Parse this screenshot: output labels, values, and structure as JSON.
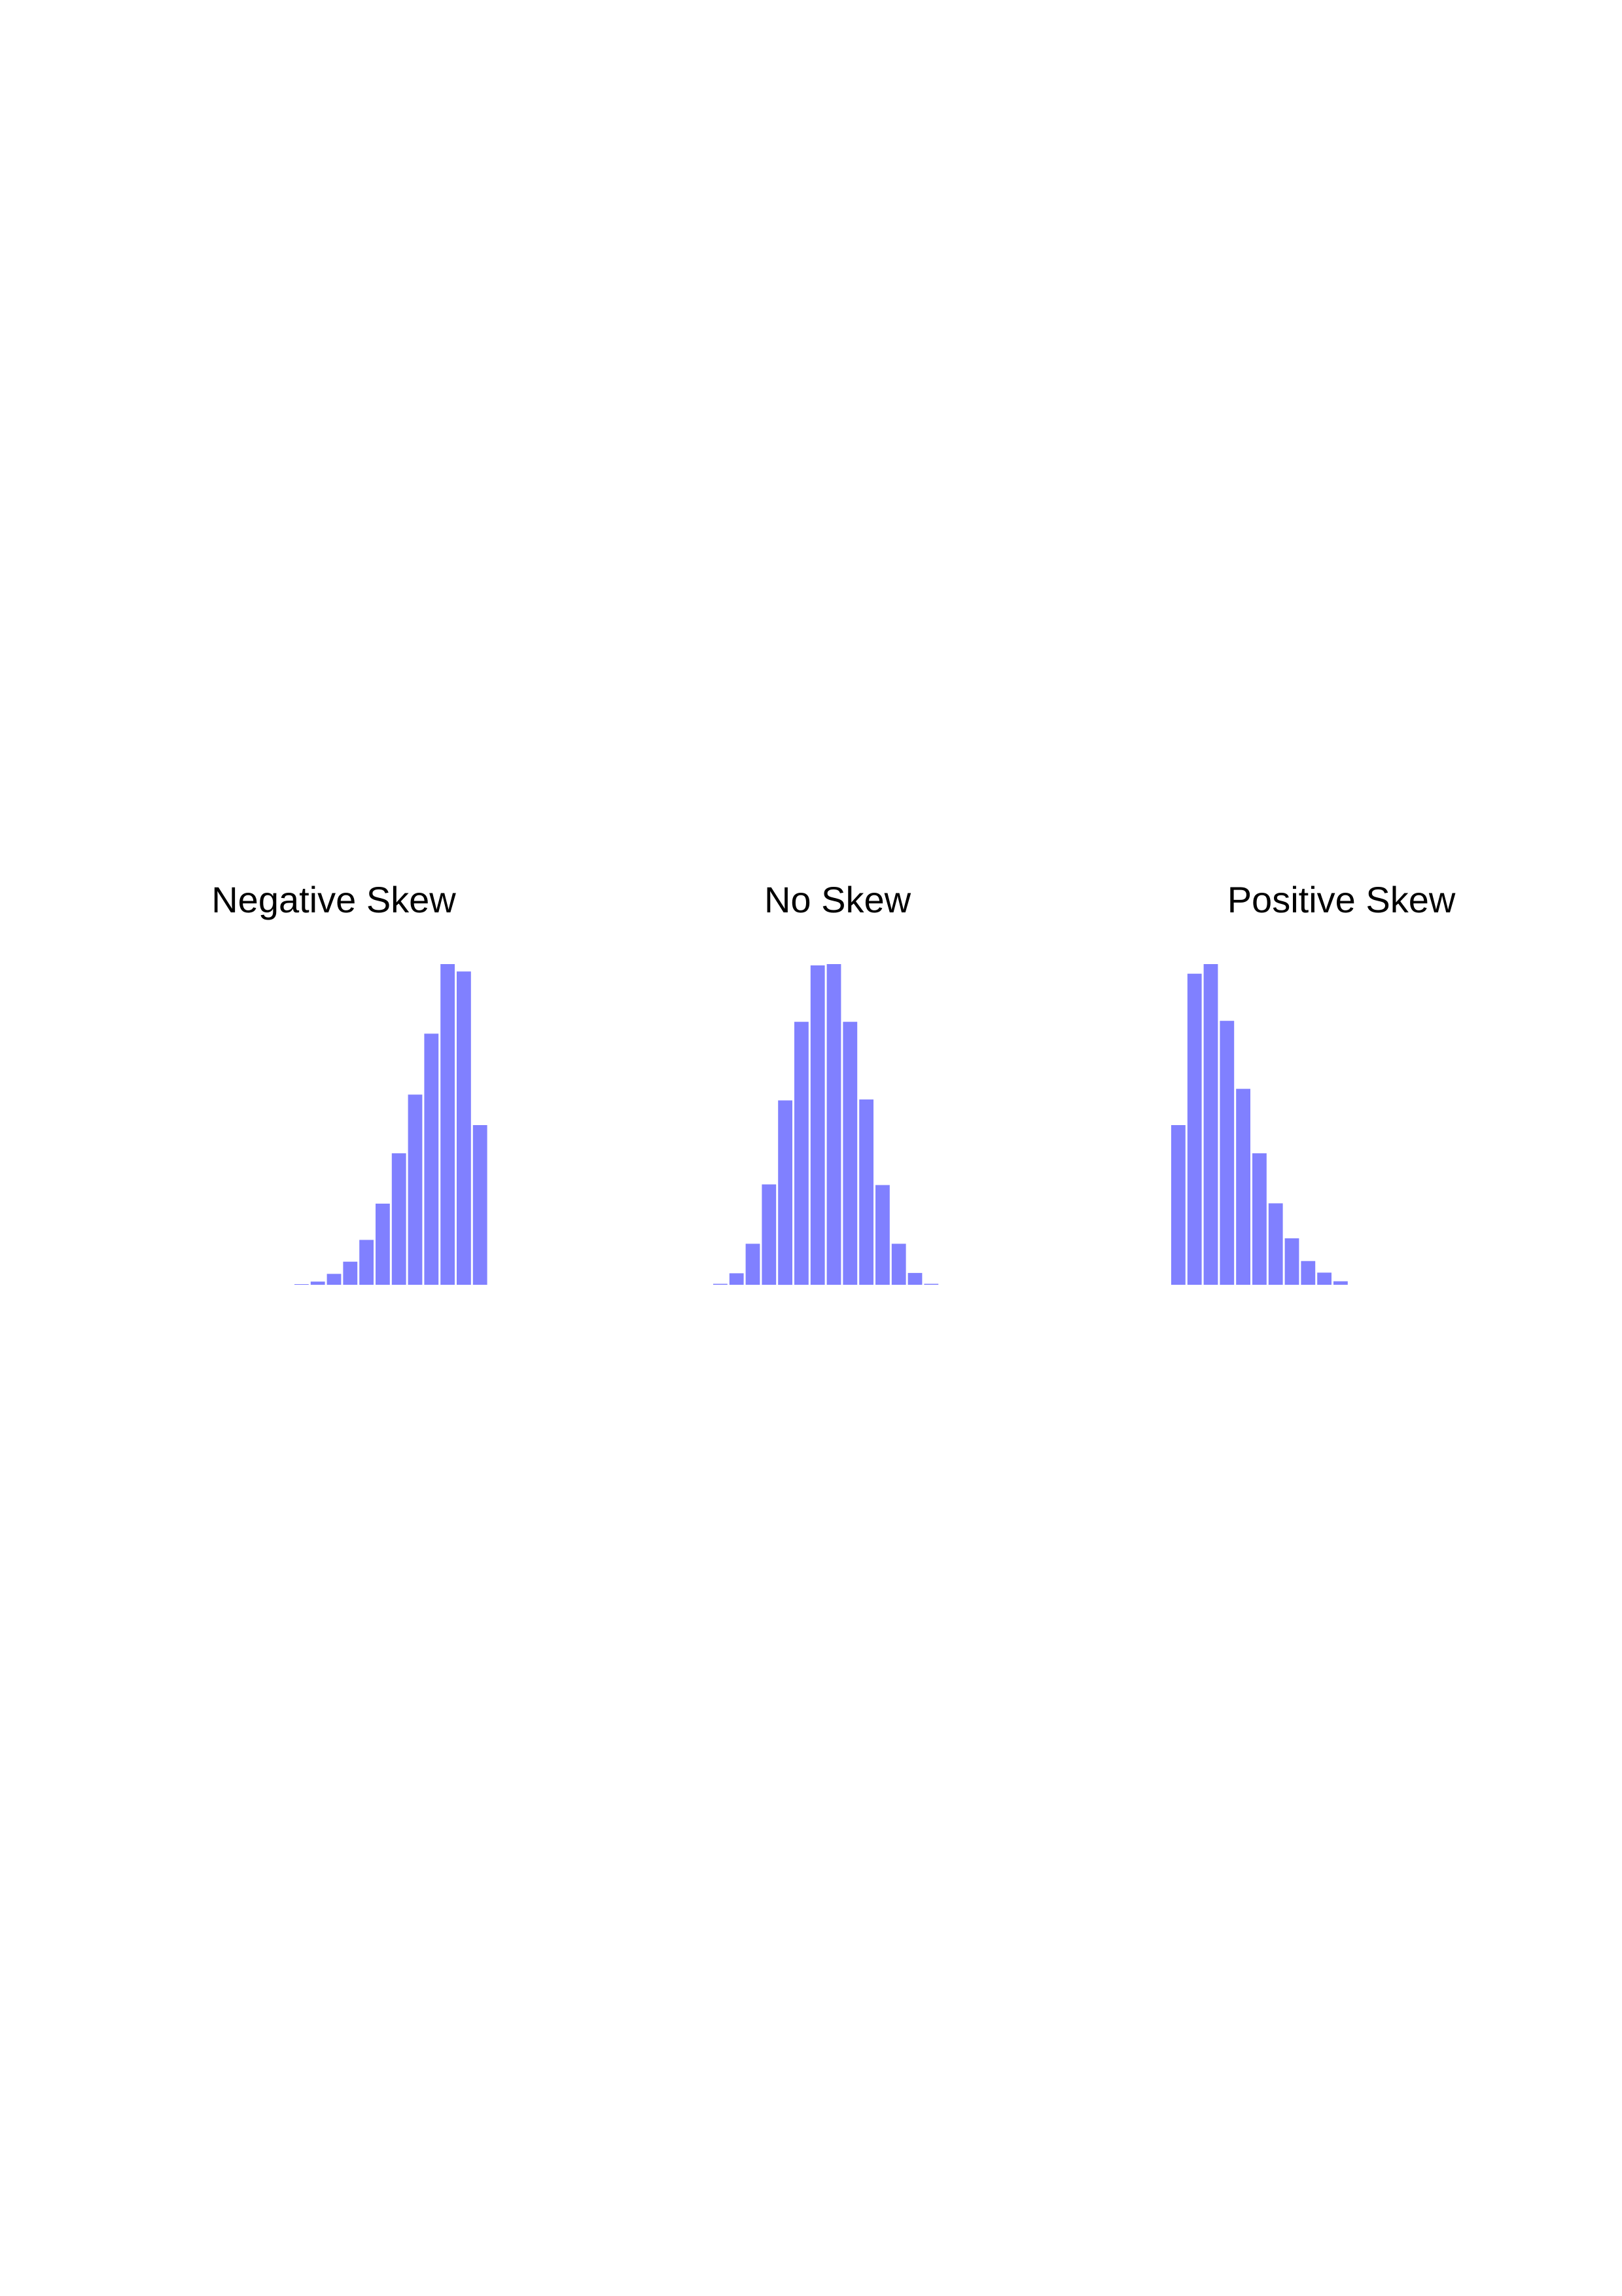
{
  "chart_data": [
    {
      "type": "bar",
      "title": "Negative Skew",
      "values": [
        1,
        10,
        34,
        72,
        140,
        253,
        410,
        593,
        783,
        1000,
        977,
        498
      ],
      "color": "#8080ff"
    },
    {
      "type": "bar",
      "title": "No Skew",
      "values": [
        3,
        36,
        128,
        313,
        575,
        820,
        996,
        1000,
        820,
        578,
        311,
        128,
        37,
        3
      ],
      "color": "#8080ff"
    },
    {
      "type": "bar",
      "title": "Positive Skew",
      "values": [
        498,
        970,
        1000,
        823,
        611,
        410,
        254,
        145,
        74,
        38,
        11
      ],
      "color": "#8080ff"
    }
  ]
}
